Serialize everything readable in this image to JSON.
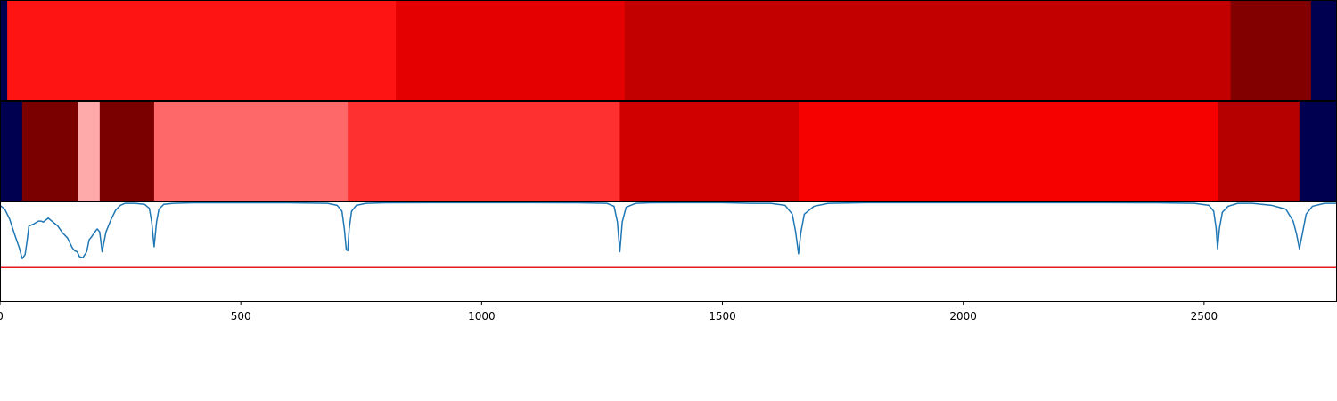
{
  "chart_data": {
    "type": "heatmap",
    "title": "",
    "xlabel": "",
    "ylabel": "",
    "xlim": [
      0,
      2776
    ],
    "grid": false,
    "x_ticks": [
      0,
      500,
      1000,
      1500,
      2000,
      2500
    ],
    "x_tick_labels": [
      "0",
      "500",
      "1000",
      "1500",
      "2000",
      "2500"
    ],
    "colors": {
      "pad": "#000050",
      "line": "#1f77b4",
      "threshold": "#e41a1c",
      "frame": "#000000"
    },
    "bands": [
      {
        "name": "band-top",
        "segments": [
          {
            "start": 0,
            "end": 15,
            "color": "#000050"
          },
          {
            "start": 15,
            "end": 822,
            "color": "#ff1414"
          },
          {
            "start": 822,
            "end": 1297,
            "color": "#e40000"
          },
          {
            "start": 1297,
            "end": 2555,
            "color": "#c20000"
          },
          {
            "start": 2555,
            "end": 2722,
            "color": "#820000"
          },
          {
            "start": 2722,
            "end": 2776,
            "color": "#000050"
          }
        ]
      },
      {
        "name": "band-bottom",
        "segments": [
          {
            "start": 0,
            "end": 46,
            "color": "#000050"
          },
          {
            "start": 46,
            "end": 161,
            "color": "#7a0000"
          },
          {
            "start": 161,
            "end": 207,
            "color": "#ffaaaa"
          },
          {
            "start": 207,
            "end": 320,
            "color": "#7a0000"
          },
          {
            "start": 320,
            "end": 722,
            "color": "#ff6868"
          },
          {
            "start": 722,
            "end": 1287,
            "color": "#ff3030"
          },
          {
            "start": 1287,
            "end": 1658,
            "color": "#d00000"
          },
          {
            "start": 1658,
            "end": 2528,
            "color": "#f60000"
          },
          {
            "start": 2528,
            "end": 2698,
            "color": "#b60000"
          },
          {
            "start": 2698,
            "end": 2776,
            "color": "#000050"
          }
        ]
      }
    ],
    "threshold_level": 0.66,
    "series": [
      {
        "type": "line",
        "x": [
          0,
          10,
          20,
          30,
          40,
          46,
          52,
          56,
          60,
          70,
          80,
          85,
          90,
          100,
          110,
          120,
          130,
          140,
          150,
          155,
          160,
          165,
          172,
          180,
          185,
          190,
          200,
          202,
          207,
          212,
          220,
          230,
          240,
          250,
          260,
          280,
          300,
          310,
          315,
          320,
          325,
          330,
          340,
          360,
          400,
          500,
          600,
          680,
          700,
          710,
          715,
          719,
          722,
          725,
          730,
          740,
          760,
          800,
          900,
          1000,
          1100,
          1200,
          1260,
          1275,
          1282,
          1287,
          1292,
          1300,
          1320,
          1350,
          1400,
          1500,
          1560,
          1600,
          1630,
          1645,
          1652,
          1658,
          1663,
          1670,
          1690,
          1720,
          1800,
          1900,
          2000,
          2100,
          2200,
          2300,
          2400,
          2480,
          2510,
          2520,
          2525,
          2528,
          2532,
          2538,
          2550,
          2570,
          2600,
          2640,
          2670,
          2685,
          2692,
          2698,
          2704,
          2712,
          2725,
          2750,
          2776
        ],
        "y": [
          0.03,
          0.07,
          0.17,
          0.32,
          0.46,
          0.57,
          0.53,
          0.4,
          0.24,
          0.22,
          0.19,
          0.19,
          0.2,
          0.16,
          0.2,
          0.24,
          0.31,
          0.36,
          0.46,
          0.49,
          0.5,
          0.55,
          0.56,
          0.5,
          0.38,
          0.35,
          0.28,
          0.27,
          0.3,
          0.5,
          0.3,
          0.18,
          0.08,
          0.03,
          0.01,
          0.01,
          0.02,
          0.06,
          0.2,
          0.45,
          0.2,
          0.07,
          0.02,
          0.01,
          0.005,
          0.005,
          0.005,
          0.01,
          0.03,
          0.09,
          0.27,
          0.48,
          0.49,
          0.27,
          0.09,
          0.03,
          0.01,
          0.005,
          0.003,
          0.003,
          0.003,
          0.005,
          0.01,
          0.04,
          0.2,
          0.5,
          0.2,
          0.05,
          0.01,
          0.005,
          0.003,
          0.003,
          0.01,
          0.01,
          0.03,
          0.12,
          0.3,
          0.52,
          0.3,
          0.12,
          0.04,
          0.01,
          0.003,
          0.003,
          0.003,
          0.003,
          0.003,
          0.003,
          0.005,
          0.01,
          0.03,
          0.09,
          0.26,
          0.47,
          0.26,
          0.1,
          0.04,
          0.01,
          0.01,
          0.03,
          0.07,
          0.19,
          0.32,
          0.47,
          0.32,
          0.12,
          0.04,
          0.01,
          0.01
        ]
      }
    ]
  }
}
